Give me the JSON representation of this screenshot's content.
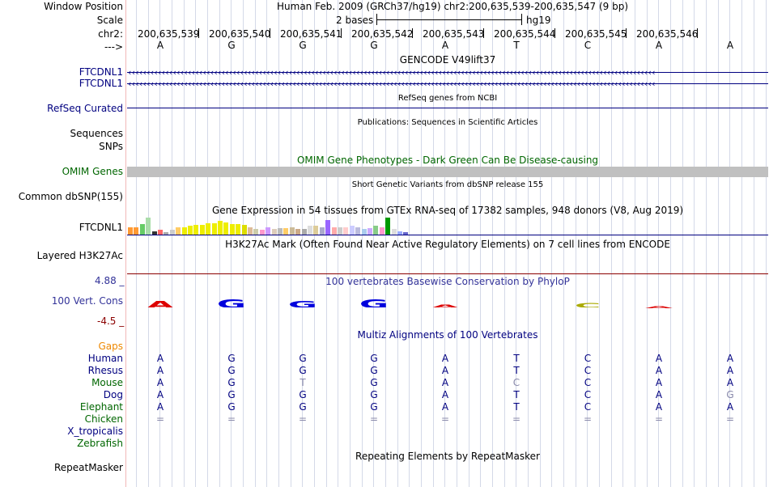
{
  "header": {
    "window_position_label": "Window Position",
    "window_position_value": "Human Feb. 2009 (GRCh37/hg19)   chr2:200,635,539-200,635,547 (9 bp)",
    "scale_label": "Scale",
    "scale_bases": "2 bases",
    "scale_assembly": "hg19",
    "chrom_label": "chr2:",
    "strand_label": "--->",
    "positions": [
      "200,635,539",
      "200,635,540",
      "200,635,541",
      "200,635,542",
      "200,635,543",
      "200,635,544",
      "200,635,545",
      "200,635,546"
    ],
    "bases": [
      "A",
      "G",
      "G",
      "G",
      "A",
      "T",
      "C",
      "A",
      "A"
    ]
  },
  "tracks": {
    "gencode": {
      "title": "GENCODE V49lift37",
      "labels": [
        "FTCDNL1",
        "FTCDNL1"
      ]
    },
    "refseq": {
      "title": "RefSeq genes from NCBI",
      "label": "RefSeq Curated"
    },
    "publications": {
      "title": "Publications: Sequences in Scientific Articles",
      "label_sequences": "Sequences",
      "label_snps": "SNPs"
    },
    "omim": {
      "title": "OMIM Gene Phenotypes - Dark Green Can Be Disease-causing",
      "label": "OMIM Genes"
    },
    "dbsnp": {
      "title": "Short Genetic Variants from dbSNP release 155",
      "label": "Common dbSNP(155)"
    },
    "gtex": {
      "title": "Gene Expression in 54 tissues from GTEx RNA-seq of 17382 samples, 948 donors (V8, Aug 2019)",
      "label": "FTCDNL1",
      "bars": [
        {
          "h": 0.45,
          "c": "#ff9933"
        },
        {
          "h": 0.45,
          "c": "#ff9933"
        },
        {
          "h": 0.6,
          "c": "#66cc66"
        },
        {
          "h": 1.0,
          "c": "#aaddaa"
        },
        {
          "h": 0.18,
          "c": "#333333"
        },
        {
          "h": 0.3,
          "c": "#ff6666"
        },
        {
          "h": 0.12,
          "c": "#aaaaaa"
        },
        {
          "h": 0.3,
          "c": "#cccccc"
        },
        {
          "h": 0.45,
          "c": "#ffcc66"
        },
        {
          "h": 0.45,
          "c": "#eeee00"
        },
        {
          "h": 0.5,
          "c": "#eeee00"
        },
        {
          "h": 0.55,
          "c": "#eeee00"
        },
        {
          "h": 0.55,
          "c": "#eeee00"
        },
        {
          "h": 0.65,
          "c": "#eeee00"
        },
        {
          "h": 0.65,
          "c": "#eeee00"
        },
        {
          "h": 0.8,
          "c": "#eeee00"
        },
        {
          "h": 0.7,
          "c": "#eeee00"
        },
        {
          "h": 0.6,
          "c": "#eeee00"
        },
        {
          "h": 0.6,
          "c": "#eeee00"
        },
        {
          "h": 0.55,
          "c": "#dddd00"
        },
        {
          "h": 0.45,
          "c": "#ddbb99"
        },
        {
          "h": 0.35,
          "c": "#ccccaa"
        },
        {
          "h": 0.3,
          "c": "#ff99cc"
        },
        {
          "h": 0.45,
          "c": "#cc99ff"
        },
        {
          "h": 0.35,
          "c": "#ddccbb"
        },
        {
          "h": 0.4,
          "c": "#bbbbbb"
        },
        {
          "h": 0.4,
          "c": "#ffcc66"
        },
        {
          "h": 0.45,
          "c": "#ccbb99"
        },
        {
          "h": 0.35,
          "c": "#ccaa88"
        },
        {
          "h": 0.35,
          "c": "#aaaaaa"
        },
        {
          "h": 0.5,
          "c": "#dddddd"
        },
        {
          "h": 0.5,
          "c": "#ddcc99"
        },
        {
          "h": 0.45,
          "c": "#aaaacc"
        },
        {
          "h": 0.85,
          "c": "#9966ff"
        },
        {
          "h": 0.45,
          "c": "#ffaaaa"
        },
        {
          "h": 0.45,
          "c": "#cccccc"
        },
        {
          "h": 0.45,
          "c": "#ffcccc"
        },
        {
          "h": 0.5,
          "c": "#ccccff"
        },
        {
          "h": 0.45,
          "c": "#bbbbdd"
        },
        {
          "h": 0.35,
          "c": "#aaccee"
        },
        {
          "h": 0.4,
          "c": "#ccaaff"
        },
        {
          "h": 0.5,
          "c": "#88cc88"
        },
        {
          "h": 0.45,
          "c": "#ff99cc"
        },
        {
          "h": 1.0,
          "c": "#009900"
        },
        {
          "h": 0.35,
          "c": "#dddddd"
        },
        {
          "h": 0.2,
          "c": "#99aaff"
        },
        {
          "h": 0.12,
          "c": "#6666cc"
        }
      ]
    },
    "h3k27ac": {
      "title": "H3K27Ac Mark (Often Found Near Active Regulatory Elements) on 7 cell lines from ENCODE",
      "label": "Layered H3K27Ac"
    },
    "cons": {
      "title": "100 vertebrates Basewise Conservation by PhyloP",
      "label": "100 Vert. Cons",
      "max_label": "4.88 _",
      "min_label": "-4.5 _",
      "logo": [
        {
          "letter": "A",
          "c": "#dd0000",
          "h": 0.85
        },
        {
          "letter": "G",
          "c": "#0000dd",
          "h": 1.0
        },
        {
          "letter": "G",
          "c": "#0000dd",
          "h": 0.75
        },
        {
          "letter": "G",
          "c": "#0000dd",
          "h": 1.0
        },
        {
          "letter": "A",
          "c": "#dd0000",
          "h": 0.35
        },
        {
          "letter": "",
          "c": "#ffffff",
          "h": 0
        },
        {
          "letter": "C",
          "c": "#aaaa00",
          "h": 0.5
        },
        {
          "letter": "A",
          "c": "#dd0000",
          "h": 0.2
        },
        {
          "letter": "",
          "c": "#ffffff",
          "h": 0
        }
      ]
    },
    "multiz": {
      "title": "Multiz Alignments of 100 Vertebrates",
      "gaps_label": "Gaps",
      "species": [
        {
          "name": "Human",
          "color": "#000080",
          "bases": [
            "A",
            "G",
            "G",
            "G",
            "A",
            "T",
            "C",
            "A",
            "A"
          ],
          "dim": []
        },
        {
          "name": "Rhesus",
          "color": "#000080",
          "bases": [
            "A",
            "G",
            "G",
            "G",
            "A",
            "T",
            "C",
            "A",
            "A"
          ],
          "dim": []
        },
        {
          "name": "Mouse",
          "color": "#006600",
          "bases": [
            "A",
            "G",
            "T",
            "G",
            "A",
            "C",
            "C",
            "A",
            "A"
          ],
          "dim": [
            2,
            5
          ]
        },
        {
          "name": "Dog",
          "color": "#000080",
          "bases": [
            "A",
            "G",
            "G",
            "G",
            "A",
            "T",
            "C",
            "A",
            "G"
          ],
          "dim": [
            8
          ]
        },
        {
          "name": "Elephant",
          "color": "#006600",
          "bases": [
            "A",
            "G",
            "G",
            "G",
            "A",
            "T",
            "C",
            "A",
            "A"
          ],
          "dim": []
        },
        {
          "name": "Chicken",
          "color": "#006600",
          "bases": [
            "=",
            "=",
            "=",
            "=",
            "=",
            "=",
            "=",
            "=",
            "="
          ],
          "dim": [
            0,
            1,
            2,
            3,
            4,
            5,
            6,
            7,
            8
          ]
        },
        {
          "name": "X_tropicalis",
          "color": "#000080",
          "bases": [],
          "dim": []
        },
        {
          "name": "Zebrafish",
          "color": "#006600",
          "bases": [],
          "dim": []
        }
      ]
    },
    "repeatmasker": {
      "title": "Repeating Elements by RepeatMasker",
      "label": "RepeatMasker"
    }
  },
  "colors": {
    "navy": "#000080",
    "omim_green": "#006600",
    "gaps_orange": "#ee8800",
    "cons_brown": "#8b0000",
    "cons_label": "#333399"
  }
}
